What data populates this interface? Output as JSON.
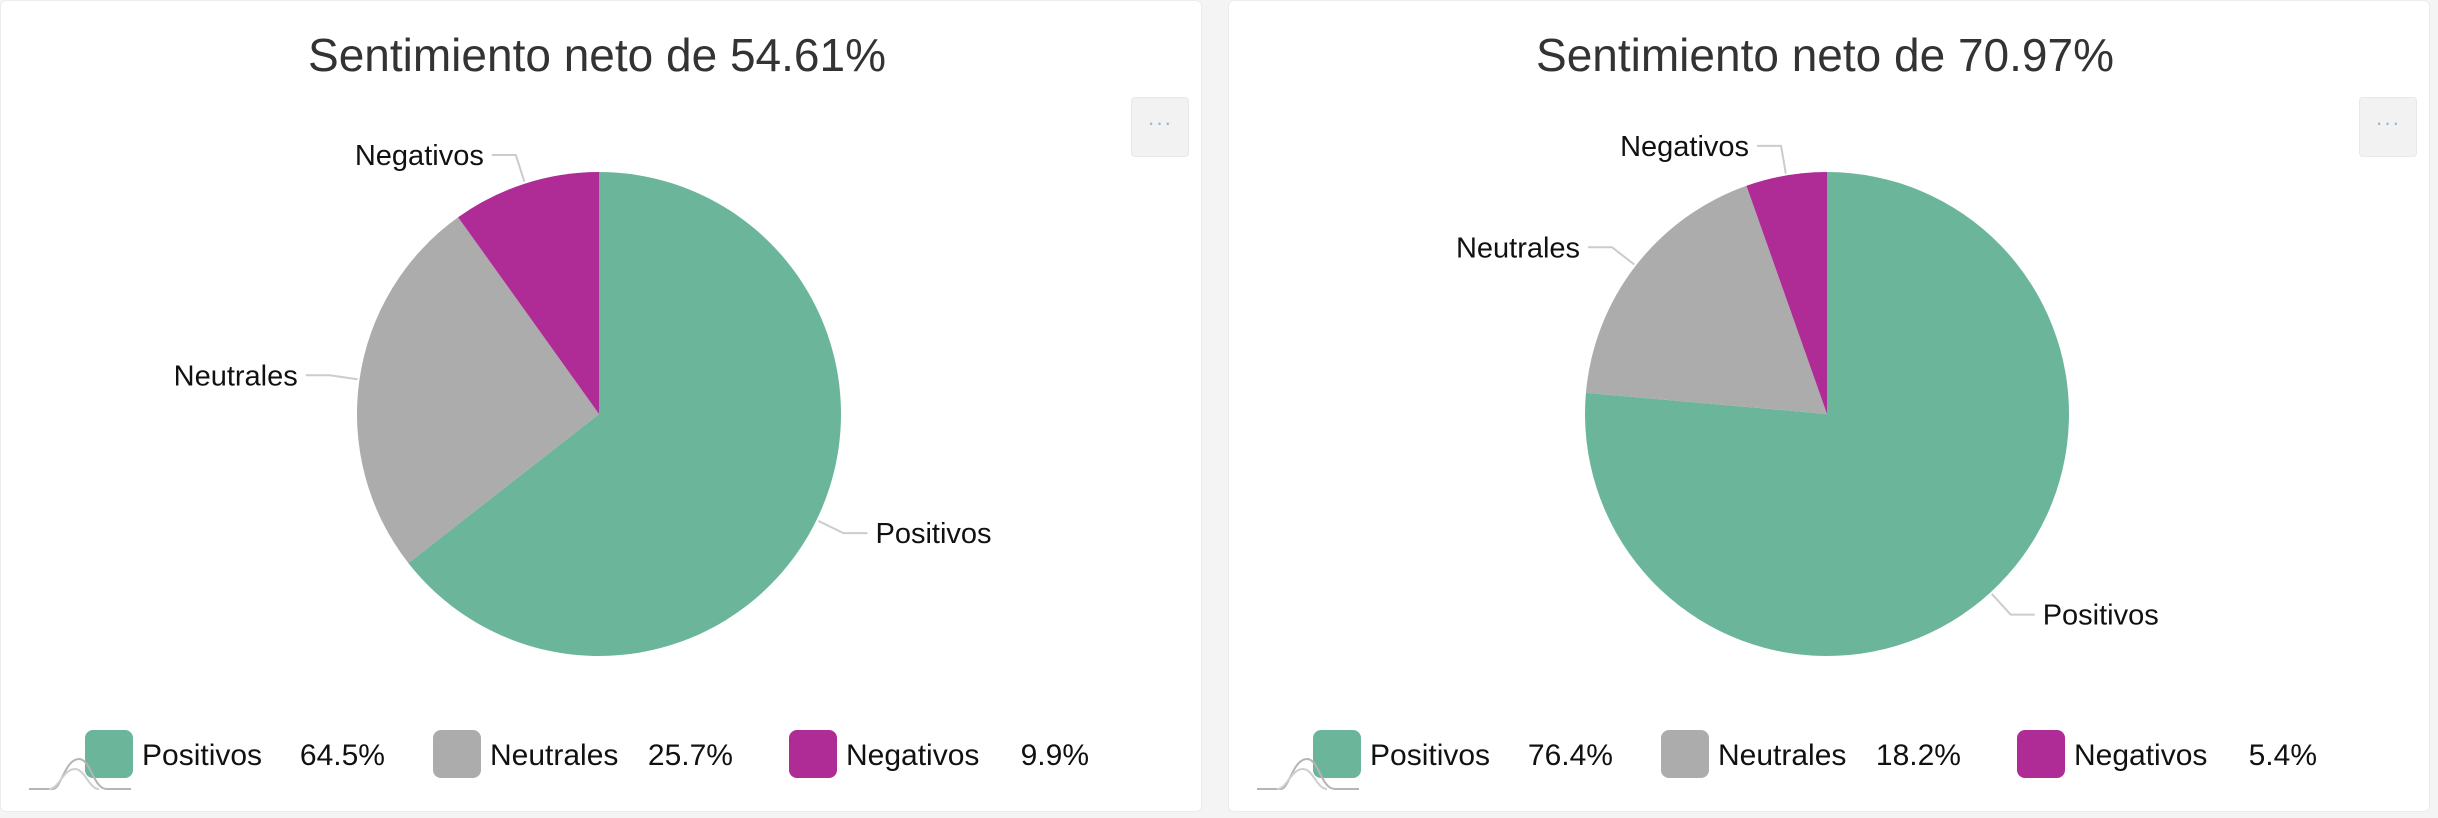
{
  "colors": {
    "positivos": "#6bb69b",
    "neutrales": "#acacac",
    "negativos": "#af2b96"
  },
  "icons": {
    "menu": "ellipsis-icon",
    "logo": "bell-curve-logo-icon"
  },
  "menu_label": "···",
  "chart_data": [
    {
      "type": "pie",
      "title": "Sentimiento neto de 54.61%",
      "categories": [
        "Positivos",
        "Neutrales",
        "Negativos"
      ],
      "values": [
        64.5,
        25.7,
        9.9
      ],
      "legend_values": [
        "64.5%",
        "25.7%",
        "9.9%"
      ],
      "legend": "bottom",
      "start_angle": 0,
      "direction": "clockwise"
    },
    {
      "type": "pie",
      "title": "Sentimiento neto de 70.97%",
      "categories": [
        "Positivos",
        "Neutrales",
        "Negativos"
      ],
      "values": [
        76.4,
        18.2,
        5.4
      ],
      "legend_values": [
        "76.4%",
        "18.2%",
        "5.4%"
      ],
      "legend": "bottom",
      "start_angle": 0,
      "direction": "clockwise"
    }
  ]
}
